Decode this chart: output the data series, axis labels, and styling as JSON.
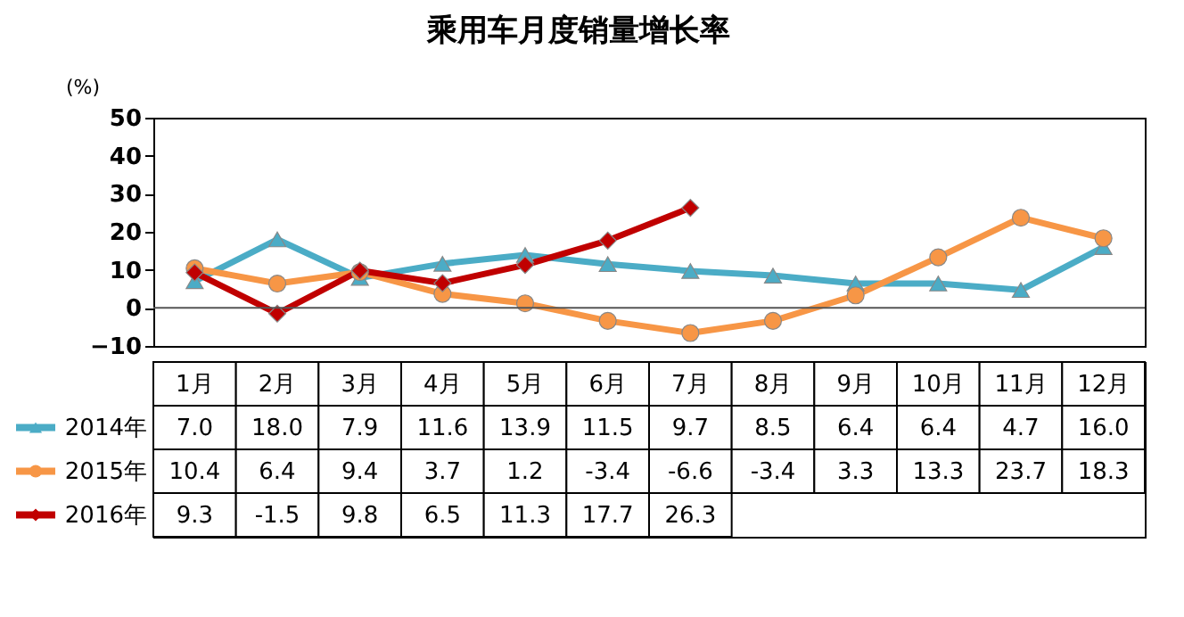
{
  "chart_data": {
    "type": "line",
    "title": "乘用车月度销量增长率",
    "ylabel": "(%)",
    "categories": [
      "1月",
      "2月",
      "3月",
      "4月",
      "5月",
      "6月",
      "7月",
      "8月",
      "9月",
      "10月",
      "11月",
      "12月"
    ],
    "ylim": [
      -10,
      50
    ],
    "yticks": [
      -10,
      0,
      10,
      20,
      30,
      40,
      50
    ],
    "grid": false,
    "legend": "bottom left",
    "line_style": "solid",
    "ref_lines": [
      {
        "axis": "y",
        "value": 0
      }
    ],
    "series": [
      {
        "name": "2014年",
        "color": "#4bacc6",
        "marker": "triangle",
        "values": [
          7.0,
          18.0,
          7.9,
          11.6,
          13.9,
          11.5,
          9.7,
          8.5,
          6.4,
          6.4,
          4.7,
          16.0
        ],
        "value_labels": [
          "7.0",
          "18.0",
          "7.9",
          "11.6",
          "13.9",
          "11.5",
          "9.7",
          "8.5",
          "6.4",
          "6.4",
          "4.7",
          "16.0"
        ]
      },
      {
        "name": "2015年",
        "color": "#f79646",
        "marker": "circle",
        "values": [
          10.4,
          6.4,
          9.4,
          3.7,
          1.2,
          -3.4,
          -6.6,
          -3.4,
          3.3,
          13.3,
          23.7,
          18.3
        ],
        "value_labels": [
          "10.4",
          "6.4",
          "9.4",
          "3.7",
          "1.2",
          "-3.4",
          "-6.6",
          "-3.4",
          "3.3",
          "13.3",
          "23.7",
          "18.3"
        ]
      },
      {
        "name": "2016年",
        "color": "#c00000",
        "marker": "diamond",
        "values": [
          9.3,
          -1.5,
          9.8,
          6.5,
          11.3,
          17.7,
          26.3,
          null,
          null,
          null,
          null,
          null
        ],
        "value_labels": [
          "9.3",
          "-1.5",
          "9.8",
          "6.5",
          "11.3",
          "17.7",
          "26.3",
          null,
          null,
          null,
          null,
          null
        ]
      }
    ]
  }
}
